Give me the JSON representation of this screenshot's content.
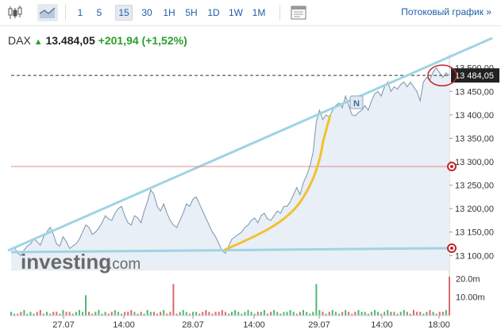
{
  "toolbar": {
    "timeframes": [
      "1",
      "5",
      "15",
      "30",
      "1H",
      "5H",
      "1D",
      "1W",
      "1M"
    ],
    "active_timeframe": "15",
    "stream_link": "Потоковый график »",
    "icons": [
      "candlestick-chart-icon",
      "area-chart-icon",
      "indicators-panel-icon"
    ]
  },
  "quote": {
    "symbol": "DAX",
    "price": "13.484,05",
    "change": "+201,94",
    "change_pct": "(+1,52%)"
  },
  "price_axis": {
    "labels": [
      "13 500,00",
      "13 450,00",
      "13 400,00",
      "13 350,00",
      "13 300,00",
      "13 250,00",
      "13 200,00",
      "13 150,00",
      "13 100,00"
    ],
    "current_label": "13 484,05"
  },
  "volume_axis": {
    "labels": [
      "20.0m",
      "10.00m"
    ]
  },
  "time_axis": {
    "labels": [
      "27.07",
      "14:00",
      "28.07",
      "14:00",
      "29.07",
      "14:00",
      "18:00"
    ]
  },
  "watermark": {
    "brand": "investing",
    "suffix": ".com"
  },
  "annotation_marker": "N",
  "colors": {
    "accent": "#1f5ea8",
    "line": "#7d93ab",
    "area": "#e8eff6",
    "trendline": "#9fd4e3",
    "curve": "#f2c12e",
    "up": "#2aa02a",
    "hline": "#e08a8a",
    "vol_up": "#4fb86e",
    "vol_down": "#d96a6a"
  },
  "chart_data": {
    "type": "area",
    "title": "",
    "ylim": [
      13070,
      13530
    ],
    "last_value": 13484.05,
    "series": [
      {
        "values": [
          13115,
          13118,
          13105,
          13100,
          13112,
          13120,
          13125,
          13135,
          13130,
          13122,
          13140,
          13150,
          13160,
          13145,
          13125,
          13120,
          13140,
          13130,
          13115,
          13120,
          13125,
          13135,
          13150,
          13165,
          13160,
          13145,
          13150,
          13158,
          13170,
          13185,
          13178,
          13175,
          13190,
          13200,
          13205,
          13185,
          13170,
          13165,
          13185,
          13180,
          13170,
          13195,
          13215,
          13240,
          13230,
          13205,
          13195,
          13210,
          13190,
          13175,
          13165,
          13160,
          13175,
          13190,
          13210,
          13205,
          13220,
          13225,
          13210,
          13195,
          13180,
          13165,
          13150,
          13140,
          13125,
          13110,
          13105,
          13120,
          13135,
          13140,
          13145,
          13150,
          13160,
          13165,
          13175,
          13180,
          13170,
          13185,
          13190,
          13178,
          13175,
          13185,
          13195,
          13190,
          13205,
          13205,
          13215,
          13230,
          13245,
          13230,
          13255,
          13270,
          13290,
          13320,
          13385,
          13410,
          13390,
          13400,
          13395,
          13410,
          13420,
          13425,
          13415,
          13440,
          13420,
          13400,
          13398,
          13405,
          13410,
          13420,
          13410,
          13430,
          13445,
          13450,
          13440,
          13460,
          13470,
          13450,
          13460,
          13455,
          13465,
          13470,
          13460,
          13470,
          13460,
          13450,
          13430,
          13470,
          13480,
          13475,
          13492,
          13500,
          13490,
          13480,
          13490,
          13484
        ]
      }
    ],
    "volume": [
      2,
      1,
      1,
      2,
      3,
      1,
      2,
      1,
      2,
      3,
      1,
      2,
      1,
      2,
      2,
      1,
      3,
      2,
      2,
      1,
      2,
      3,
      2,
      11,
      2,
      1,
      2,
      3,
      1,
      2,
      1,
      2,
      3,
      2,
      1,
      2,
      2,
      3,
      2,
      1,
      2,
      1,
      3,
      2,
      2,
      1,
      2,
      3,
      1,
      2,
      17,
      1,
      2,
      3,
      2,
      1,
      2,
      2,
      1,
      2,
      3,
      2,
      1,
      2,
      2,
      3,
      2,
      1,
      2,
      3,
      2,
      1,
      2,
      3,
      2,
      1,
      2,
      2,
      3,
      1,
      2,
      3,
      2,
      1,
      2,
      2,
      3,
      2,
      1,
      2,
      3,
      2,
      1,
      2,
      17,
      3,
      2,
      1,
      2,
      3,
      2,
      1,
      2,
      3,
      2,
      1,
      2,
      3,
      2,
      2,
      1,
      2,
      3,
      2,
      1,
      2,
      3,
      2,
      2,
      1,
      2,
      3,
      2,
      1,
      3,
      2,
      2,
      1,
      2,
      3,
      2,
      1,
      2,
      2,
      3,
      21
    ]
  }
}
